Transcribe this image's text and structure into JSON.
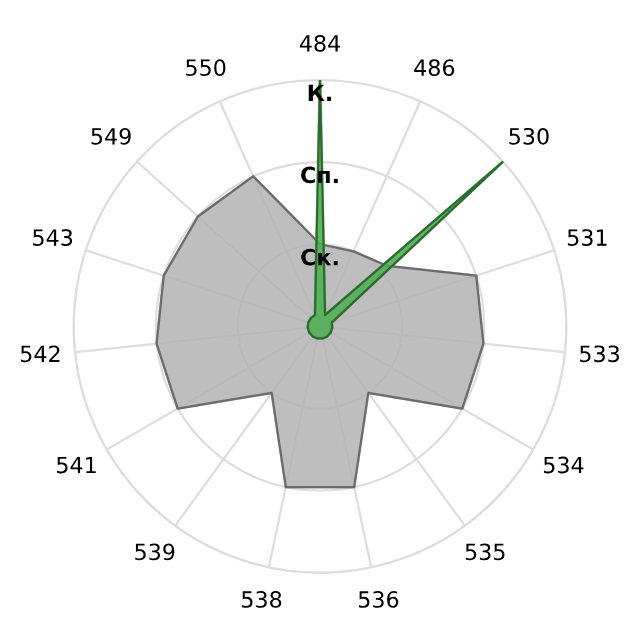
{
  "chart_data": {
    "type": "radar",
    "categories": [
      "484",
      "486",
      "530",
      "531",
      "533",
      "534",
      "535",
      "536",
      "538",
      "539",
      "541",
      "542",
      "543",
      "549",
      "550"
    ],
    "series": [
      {
        "type": "area",
        "color": "#b3b3b3",
        "values": [
          1.0,
          1.0,
          1.1,
          2.0,
          2.0,
          2.0,
          1.0,
          2.0,
          2.0,
          1.0,
          2.0,
          2.0,
          2.0,
          2.0,
          2.0
        ]
      },
      {
        "type": "area",
        "color": "#4caf50",
        "values": [
          3.0,
          0.15,
          3.0,
          0.15,
          0.15,
          0.15,
          0.15,
          0.15,
          0.15,
          0.15,
          0.15,
          0.15,
          0.15,
          0.15,
          0.15
        ]
      }
    ],
    "ylim": [
      0,
      3
    ],
    "yticks": [
      {
        "value": 1,
        "label": "Ск."
      },
      {
        "value": 2,
        "label": "Сп."
      },
      {
        "value": 3,
        "label": "К."
      }
    ],
    "grid": true
  }
}
